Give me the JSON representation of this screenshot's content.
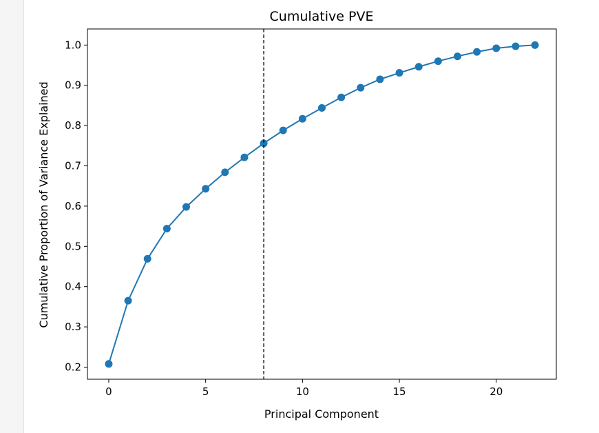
{
  "chart_data": {
    "type": "line",
    "title": "Cumulative PVE",
    "xlabel": "Principal Component",
    "ylabel": "Cumulative Proportion of Variance Explained",
    "xlim": [
      -1.1,
      23.1
    ],
    "ylim": [
      0.17,
      1.04
    ],
    "xticks": [
      0,
      5,
      10,
      15,
      20
    ],
    "xtick_labels": [
      "0",
      "5",
      "10",
      "15",
      "20"
    ],
    "yticks": [
      0.2,
      0.3,
      0.4,
      0.5,
      0.6,
      0.7,
      0.8,
      0.9,
      1.0
    ],
    "ytick_labels": [
      "0.2",
      "0.3",
      "0.4",
      "0.5",
      "0.6",
      "0.7",
      "0.8",
      "0.9",
      "1.0"
    ],
    "grid": false,
    "series": [
      {
        "x": [
          0,
          1,
          2,
          3,
          4,
          5,
          6,
          7,
          8,
          9,
          10,
          11,
          12,
          13,
          14,
          15,
          16,
          17,
          18,
          19,
          20,
          21,
          22
        ],
        "y": [
          0.208,
          0.365,
          0.469,
          0.544,
          0.598,
          0.643,
          0.684,
          0.721,
          0.756,
          0.788,
          0.817,
          0.844,
          0.87,
          0.894,
          0.915,
          0.931,
          0.946,
          0.96,
          0.972,
          0.983,
          0.992,
          0.997,
          1.0
        ],
        "color": "#1f77b4",
        "marker": "circle"
      }
    ],
    "vline": {
      "x": 8,
      "style": "dashed",
      "color": "#000000"
    }
  }
}
